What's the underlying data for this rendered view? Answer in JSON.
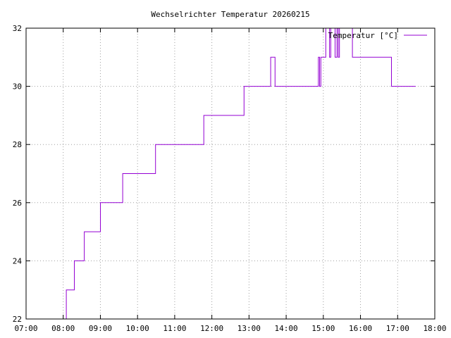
{
  "chart_data": {
    "type": "line",
    "title": "Wechselrichter Temperatur 20260215",
    "xlabel": "",
    "ylabel": "",
    "xlim": [
      "07:00",
      "18:00"
    ],
    "ylim": [
      22,
      32
    ],
    "x_ticks": [
      "07:00",
      "08:00",
      "09:00",
      "10:00",
      "11:00",
      "12:00",
      "13:00",
      "14:00",
      "15:00",
      "16:00",
      "17:00",
      "18:00"
    ],
    "y_ticks": [
      "22",
      "24",
      "26",
      "28",
      "30",
      "32"
    ],
    "grid": true,
    "legend_position": "top-right",
    "series": [
      {
        "name": "Temperatur [°C]",
        "color": "#9400d3",
        "step": true,
        "points": [
          [
            "07:59",
            22
          ],
          [
            "08:05",
            22
          ],
          [
            "08:05",
            23
          ],
          [
            "08:18",
            23
          ],
          [
            "08:18",
            24
          ],
          [
            "08:34",
            24
          ],
          [
            "08:34",
            25
          ],
          [
            "09:00",
            25
          ],
          [
            "09:00",
            26
          ],
          [
            "09:36",
            26
          ],
          [
            "09:36",
            27
          ],
          [
            "10:29",
            27
          ],
          [
            "10:29",
            28
          ],
          [
            "11:47",
            28
          ],
          [
            "11:47",
            29
          ],
          [
            "12:52",
            29
          ],
          [
            "12:52",
            30
          ],
          [
            "13:35",
            30
          ],
          [
            "13:35",
            31
          ],
          [
            "13:42",
            31
          ],
          [
            "13:42",
            30
          ],
          [
            "14:52",
            30
          ],
          [
            "14:52",
            31
          ],
          [
            "14:54",
            31
          ],
          [
            "14:54",
            30
          ],
          [
            "14:56",
            30
          ],
          [
            "14:56",
            31
          ],
          [
            "15:04",
            31
          ],
          [
            "15:04",
            32
          ],
          [
            "15:10",
            32
          ],
          [
            "15:10",
            31
          ],
          [
            "15:12",
            31
          ],
          [
            "15:12",
            32
          ],
          [
            "15:19",
            32
          ],
          [
            "15:19",
            31
          ],
          [
            "15:22",
            31
          ],
          [
            "15:22",
            32
          ],
          [
            "15:24",
            32
          ],
          [
            "15:24",
            31
          ],
          [
            "15:26",
            31
          ],
          [
            "15:26",
            32
          ],
          [
            "15:47",
            32
          ],
          [
            "15:47",
            31
          ],
          [
            "16:50",
            31
          ],
          [
            "16:50",
            30
          ],
          [
            "17:29",
            30
          ]
        ]
      }
    ]
  }
}
